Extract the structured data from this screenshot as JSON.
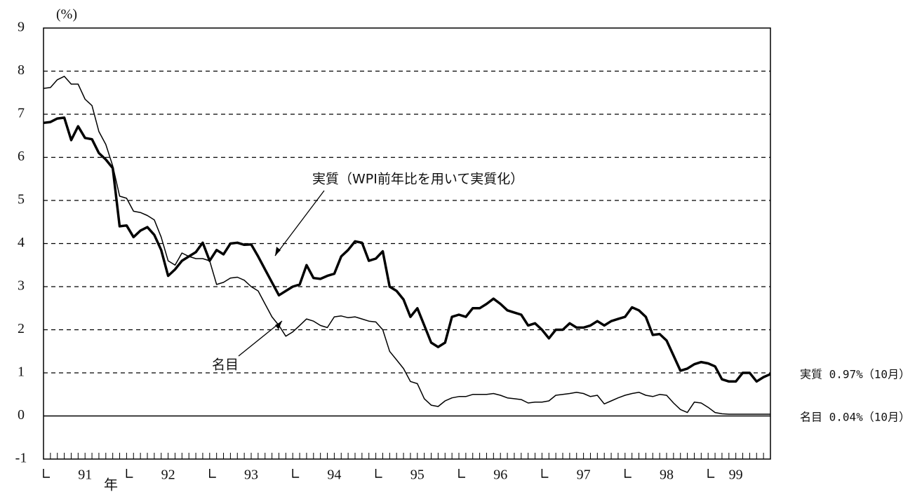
{
  "chart_data": {
    "type": "line",
    "y_unit": "(%)",
    "categories": [
      null,
      null,
      null,
      null,
      null,
      null,
      "91",
      null,
      null,
      null,
      null,
      null,
      null,
      null,
      null,
      null,
      null,
      null,
      "92",
      null,
      null,
      null,
      null,
      null,
      null,
      null,
      null,
      null,
      null,
      null,
      "93",
      null,
      null,
      null,
      null,
      null,
      null,
      null,
      null,
      null,
      null,
      null,
      "94",
      null,
      null,
      null,
      null,
      null,
      null,
      null,
      null,
      null,
      null,
      null,
      "95",
      null,
      null,
      null,
      null,
      null,
      null,
      null,
      null,
      null,
      null,
      null,
      "96",
      null,
      null,
      null,
      null,
      null,
      null,
      null,
      null,
      null,
      null,
      null,
      "97",
      null,
      null,
      null,
      null,
      null,
      null,
      null,
      null,
      null,
      null,
      null,
      "98",
      null,
      null,
      null,
      null,
      null,
      null,
      null,
      null,
      null,
      "99",
      null,
      null,
      null,
      null,
      null
    ],
    "x_unit": "年",
    "series": [
      {
        "name": "実質（WPI前年比を用いて実質化）",
        "color": "#000000",
        "width": 3.5,
        "values": [
          6.8,
          6.82,
          6.9,
          6.92,
          6.4,
          6.72,
          6.45,
          6.42,
          6.1,
          5.95,
          5.75,
          4.4,
          4.42,
          4.15,
          4.3,
          4.38,
          4.2,
          3.85,
          3.25,
          3.4,
          3.6,
          3.7,
          3.8,
          4.02,
          3.6,
          3.85,
          3.75,
          4.0,
          4.02,
          3.97,
          3.98,
          3.7,
          3.4,
          3.1,
          2.8,
          2.9,
          3.0,
          3.05,
          3.5,
          3.2,
          3.18,
          3.25,
          3.3,
          3.7,
          3.85,
          4.05,
          4.02,
          3.6,
          3.65,
          3.82,
          3.0,
          2.9,
          2.7,
          2.3,
          2.5,
          2.1,
          1.7,
          1.6,
          1.7,
          2.3,
          2.35,
          2.3,
          2.5,
          2.5,
          2.6,
          2.72,
          2.6,
          2.45,
          2.4,
          2.35,
          2.1,
          2.15,
          2.0,
          1.8,
          2.0,
          2.0,
          2.15,
          2.05,
          2.05,
          2.1,
          2.2,
          2.1,
          2.2,
          2.25,
          2.3,
          2.52,
          2.45,
          2.3,
          1.88,
          1.9,
          1.75,
          1.4,
          1.05,
          1.1,
          1.2,
          1.25,
          1.22,
          1.15,
          0.85,
          0.8,
          0.8,
          1.0,
          1.0,
          0.8,
          0.9,
          0.97
        ]
      },
      {
        "name": "名目",
        "color": "#000000",
        "width": 1.5,
        "values": [
          7.6,
          7.62,
          7.8,
          7.88,
          7.7,
          7.7,
          7.35,
          7.2,
          6.6,
          6.3,
          5.8,
          5.1,
          5.05,
          4.75,
          4.72,
          4.65,
          4.55,
          4.15,
          3.6,
          3.5,
          3.78,
          3.7,
          3.65,
          3.65,
          3.6,
          3.05,
          3.1,
          3.2,
          3.22,
          3.15,
          3.0,
          2.9,
          2.6,
          2.3,
          2.1,
          1.85,
          1.95,
          2.1,
          2.25,
          2.2,
          2.1,
          2.05,
          2.3,
          2.32,
          2.28,
          2.3,
          2.25,
          2.2,
          2.18,
          2.0,
          1.5,
          1.3,
          1.1,
          0.8,
          0.75,
          0.4,
          0.25,
          0.22,
          0.35,
          0.42,
          0.45,
          0.45,
          0.5,
          0.5,
          0.5,
          0.52,
          0.48,
          0.42,
          0.4,
          0.38,
          0.3,
          0.32,
          0.32,
          0.35,
          0.48,
          0.5,
          0.52,
          0.55,
          0.52,
          0.45,
          0.48,
          0.28,
          0.35,
          0.42,
          0.48,
          0.52,
          0.55,
          0.48,
          0.45,
          0.5,
          0.48,
          0.3,
          0.15,
          0.08,
          0.32,
          0.3,
          0.2,
          0.08,
          0.05,
          0.04,
          0.04,
          0.04,
          0.04,
          0.04,
          0.04,
          0.04
        ]
      }
    ],
    "end_labels": [
      "実質 0.97%（10月）",
      "名目 0.04%（10月）"
    ],
    "ylim": [
      -1,
      9
    ],
    "yticks": [
      -1,
      0,
      1,
      2,
      3,
      4,
      5,
      6,
      7,
      8,
      9
    ],
    "grid": "dashed",
    "zero_line": true
  }
}
